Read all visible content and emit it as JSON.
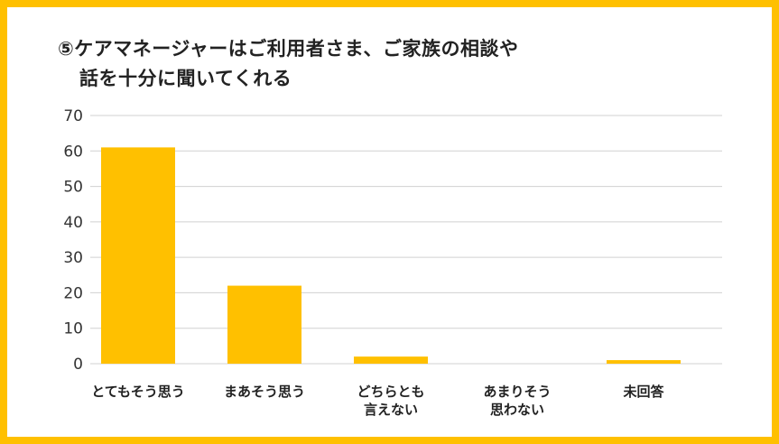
{
  "title_lines": [
    "⑤ケアマネージャーはご利用者さま、ご家族の相談や",
    "話を十分に聞いてくれる"
  ],
  "colors": {
    "frame": "#ffc000",
    "bar": "#ffc000",
    "grid": "#d0d0d0"
  },
  "chart_data": {
    "type": "bar",
    "title": "⑤ケアマネージャーはご利用者さま、ご家族の相談や話を十分に聞いてくれる",
    "categories": [
      "とてもそう思う",
      "まあそう思う",
      "どちらとも言えない",
      "あまりそう思わない",
      "未回答"
    ],
    "category_lines": [
      [
        "とてもそう思う"
      ],
      [
        "まあそう思う"
      ],
      [
        "どちらとも",
        "言えない"
      ],
      [
        "あまりそう",
        "思わない"
      ],
      [
        "未回答"
      ]
    ],
    "values": [
      61,
      22,
      2,
      0,
      1
    ],
    "ylim": [
      0,
      70
    ],
    "yticks": [
      0,
      10,
      20,
      30,
      40,
      50,
      60,
      70
    ],
    "grid": true,
    "legend": "none"
  }
}
